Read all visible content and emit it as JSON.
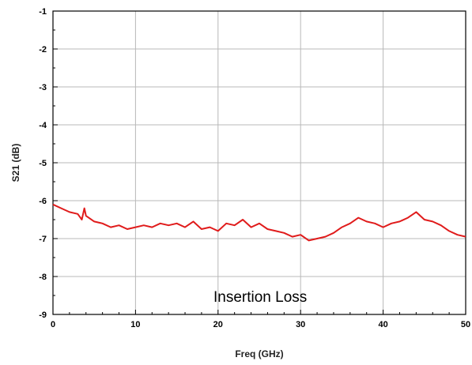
{
  "chart_data": {
    "type": "line",
    "xlabel": "Freq (GHz)",
    "ylabel": "S21 (dB)",
    "xlim": [
      0,
      50
    ],
    "ylim": [
      -9,
      -1
    ],
    "xticks": [
      0,
      10,
      20,
      30,
      40,
      50
    ],
    "yticks": [
      -1,
      -2,
      -3,
      -4,
      -5,
      -6,
      -7,
      -8,
      -9
    ],
    "grid": true,
    "annotation": "Insertion Loss",
    "line_color": "#e01b1b",
    "series": [
      {
        "x": [
          0,
          1,
          2,
          3,
          3.5,
          3.8,
          4,
          5,
          6,
          7,
          8,
          9,
          10,
          11,
          12,
          13,
          14,
          15,
          16,
          17,
          18,
          19,
          20,
          21,
          22,
          23,
          24,
          25,
          26,
          27,
          28,
          29,
          30,
          31,
          32,
          33,
          34,
          35,
          36,
          37,
          38,
          39,
          40,
          41,
          42,
          43,
          44,
          45,
          46,
          47,
          48,
          49,
          50
        ],
        "y": [
          -6.1,
          -6.2,
          -6.3,
          -6.35,
          -6.5,
          -6.2,
          -6.4,
          -6.55,
          -6.6,
          -6.7,
          -6.65,
          -6.75,
          -6.7,
          -6.65,
          -6.7,
          -6.6,
          -6.65,
          -6.6,
          -6.7,
          -6.55,
          -6.75,
          -6.7,
          -6.8,
          -6.6,
          -6.65,
          -6.5,
          -6.7,
          -6.6,
          -6.75,
          -6.8,
          -6.85,
          -6.95,
          -6.9,
          -7.05,
          -7.0,
          -6.95,
          -6.85,
          -6.7,
          -6.6,
          -6.45,
          -6.55,
          -6.6,
          -6.7,
          -6.6,
          -6.55,
          -6.45,
          -6.3,
          -6.5,
          -6.55,
          -6.65,
          -6.8,
          -6.9,
          -6.95
        ]
      }
    ]
  }
}
